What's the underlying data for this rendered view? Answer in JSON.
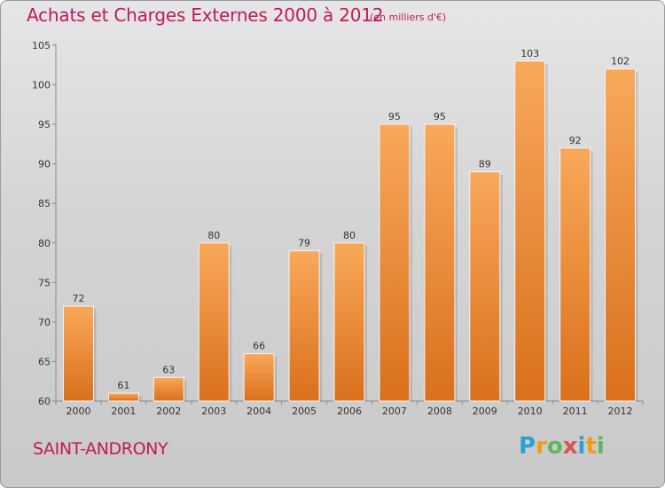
{
  "header": {
    "title": "Achats et Charges Externes 2000 à 2012",
    "subtitle": "(en milliers d'€)"
  },
  "footer": {
    "commune": "SAINT-ANDRONY",
    "logo": {
      "text": "Proxiti",
      "letters": [
        {
          "ch": "P",
          "color": "#2b9fd8"
        },
        {
          "ch": "r",
          "color": "#f39c12"
        },
        {
          "ch": "o",
          "color": "#5cb85c"
        },
        {
          "ch": "x",
          "color": "#d9534f"
        },
        {
          "ch": "i",
          "color": "#2b9fd8"
        },
        {
          "ch": "t",
          "color": "#f39c12"
        },
        {
          "ch": "i",
          "color": "#5cb85c"
        }
      ]
    }
  },
  "colors": {
    "accent_text": "#c2185b",
    "bar_light": "#f9a85a",
    "bar_dark": "#d9701c"
  },
  "chart_data": {
    "type": "bar",
    "categories": [
      "2000",
      "2001",
      "2002",
      "2003",
      "2004",
      "2005",
      "2006",
      "2007",
      "2008",
      "2009",
      "2010",
      "2011",
      "2012"
    ],
    "values": [
      72,
      61,
      63,
      80,
      66,
      79,
      80,
      95,
      95,
      89,
      103,
      92,
      102
    ],
    "title": "Achats et Charges Externes 2000 à 2012",
    "ylim": [
      60,
      105
    ],
    "yticks": [
      60,
      65,
      70,
      75,
      80,
      85,
      90,
      95,
      100,
      105
    ],
    "grid": false,
    "data_labels": true
  }
}
